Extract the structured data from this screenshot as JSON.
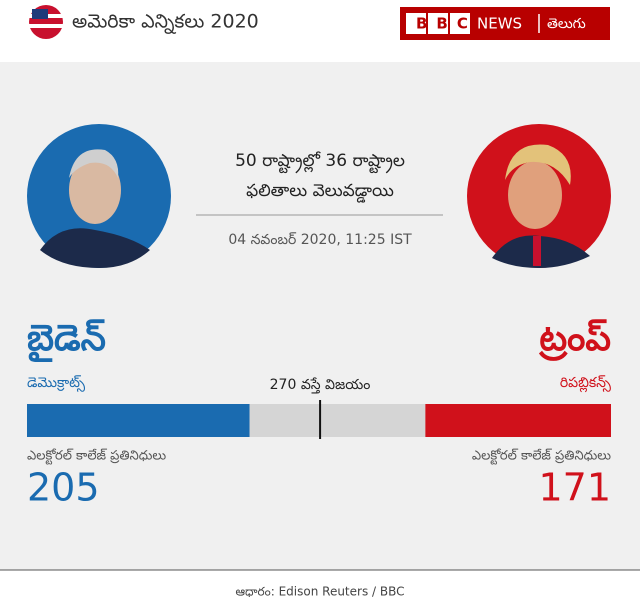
{
  "header": {
    "title": "అమెరికా ఎన్నికలు 2020",
    "brand": "BBC",
    "brand_news": "NEWS",
    "brand_lang": "తెలుగు"
  },
  "status": {
    "headline": [
      "50 రాష్ట్రాల్లో 36 రాష్ట్రాల",
      "ఫలితాలు వెలువడ్డాయి"
    ],
    "timestamp": "04 నవంబర్ 2020, 11:25 IST"
  },
  "chart_data": {
    "type": "bar",
    "xlim": [
      0,
      538
    ],
    "threshold": {
      "value": 270,
      "label": "270 వస్తే విజయం"
    },
    "series": [
      {
        "name": "బైడెన్",
        "party": "డెమొక్రాట్స్",
        "caption": "ఎలక్టోరల్ కాలేజ్ ప్రతినిధులు",
        "color": "#1a6bb0",
        "values": [
          205
        ]
      },
      {
        "name": "ట్రంప్",
        "party": "రిపబ్లికన్స్",
        "caption": "ఎలక్టోరల్ కాలేజ్ ప్రతినిధులు",
        "color": "#d0111b",
        "values": [
          171
        ]
      }
    ]
  },
  "footer": {
    "source": "ఆధారం: Edison Reuters / BBC"
  }
}
